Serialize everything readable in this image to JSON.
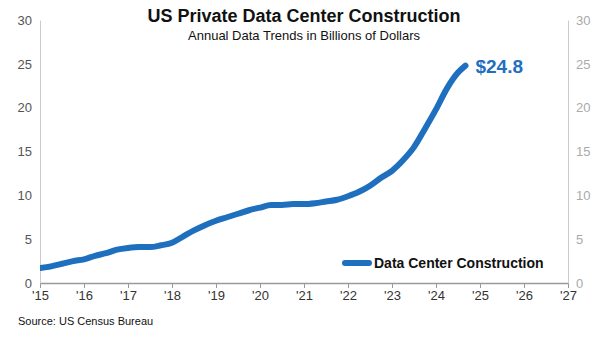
{
  "chart_data": {
    "type": "line",
    "title": "US Private Data Center Construction",
    "subtitle": "Annual Data Trends in Billions of Dollars",
    "source": "Source: US Census Bureau",
    "x": [
      2015.0,
      2015.25,
      2015.5,
      2015.75,
      2016.0,
      2016.25,
      2016.5,
      2016.75,
      2017.0,
      2017.25,
      2017.5,
      2017.75,
      2018.0,
      2018.25,
      2018.5,
      2018.75,
      2019.0,
      2019.25,
      2019.5,
      2019.75,
      2020.0,
      2020.25,
      2020.5,
      2020.75,
      2021.0,
      2021.25,
      2021.5,
      2021.75,
      2022.0,
      2022.25,
      2022.5,
      2022.75,
      2023.0,
      2023.25,
      2023.5,
      2023.75,
      2024.0,
      2024.25,
      2024.5,
      2024.67
    ],
    "series": [
      {
        "name": "Data Center Construction",
        "color": "#1f6fbf",
        "values": [
          1.7,
          1.9,
          2.2,
          2.5,
          2.7,
          3.1,
          3.4,
          3.8,
          4.0,
          4.1,
          4.1,
          4.3,
          4.6,
          5.3,
          6.0,
          6.6,
          7.1,
          7.5,
          7.9,
          8.3,
          8.6,
          8.9,
          8.9,
          9.0,
          9.0,
          9.1,
          9.3,
          9.5,
          9.9,
          10.4,
          11.1,
          12.0,
          12.8,
          14.0,
          15.5,
          17.6,
          19.8,
          22.2,
          24.0,
          24.8
        ]
      }
    ],
    "annotations": [
      {
        "text": "$24.8",
        "x": 2024.67,
        "y": 24.8
      }
    ],
    "xlim": [
      2015,
      2027
    ],
    "xticks": [
      {
        "value": 2015,
        "label": "'15"
      },
      {
        "value": 2016,
        "label": "'16"
      },
      {
        "value": 2017,
        "label": "'17"
      },
      {
        "value": 2018,
        "label": "'18"
      },
      {
        "value": 2019,
        "label": "'19"
      },
      {
        "value": 2020,
        "label": "'20"
      },
      {
        "value": 2021,
        "label": "'21"
      },
      {
        "value": 2022,
        "label": "'22"
      },
      {
        "value": 2023,
        "label": "'23"
      },
      {
        "value": 2024,
        "label": "'24"
      },
      {
        "value": 2025,
        "label": "'25"
      },
      {
        "value": 2026,
        "label": "'26"
      },
      {
        "value": 2027,
        "label": "'27"
      }
    ],
    "ylim": [
      0,
      30
    ],
    "yticks": [
      0,
      5,
      10,
      15,
      20,
      25,
      30
    ],
    "grid": false,
    "legend": "lower right"
  }
}
